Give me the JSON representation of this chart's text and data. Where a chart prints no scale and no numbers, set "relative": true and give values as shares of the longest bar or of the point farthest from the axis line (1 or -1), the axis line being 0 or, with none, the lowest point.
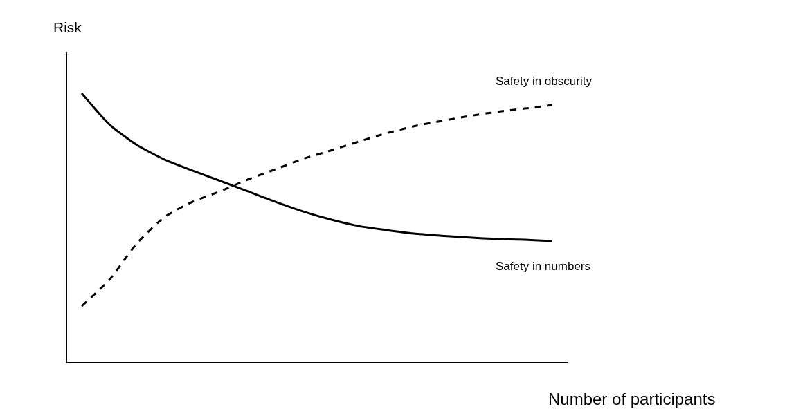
{
  "chart_data": {
    "type": "line",
    "relative": true,
    "xlabel": "Number of participants",
    "ylabel": "Risk",
    "categories": [
      null,
      null,
      null,
      null,
      null,
      null,
      null,
      null,
      null,
      null,
      null,
      null,
      null,
      null,
      null,
      null,
      null,
      null
    ],
    "series": [
      {
        "name": "Safety in obscurity",
        "color": "#000000",
        "line_style": "dashed",
        "values": [
          0.208,
          0.306,
          0.442,
          0.54,
          0.596,
          0.635,
          0.679,
          0.717,
          0.756,
          0.787,
          0.82,
          0.851,
          0.877,
          0.897,
          0.915,
          0.931,
          0.943,
          0.956
        ]
      },
      {
        "name": "Safety in numbers",
        "color": "#000000",
        "line_style": "solid",
        "values": [
          1,
          0.884,
          0.807,
          0.753,
          0.712,
          0.674,
          0.635,
          0.596,
          0.56,
          0.53,
          0.506,
          0.491,
          0.478,
          0.47,
          0.463,
          0.458,
          0.455,
          0.45
        ]
      }
    ],
    "legend": false,
    "marker": "none"
  }
}
